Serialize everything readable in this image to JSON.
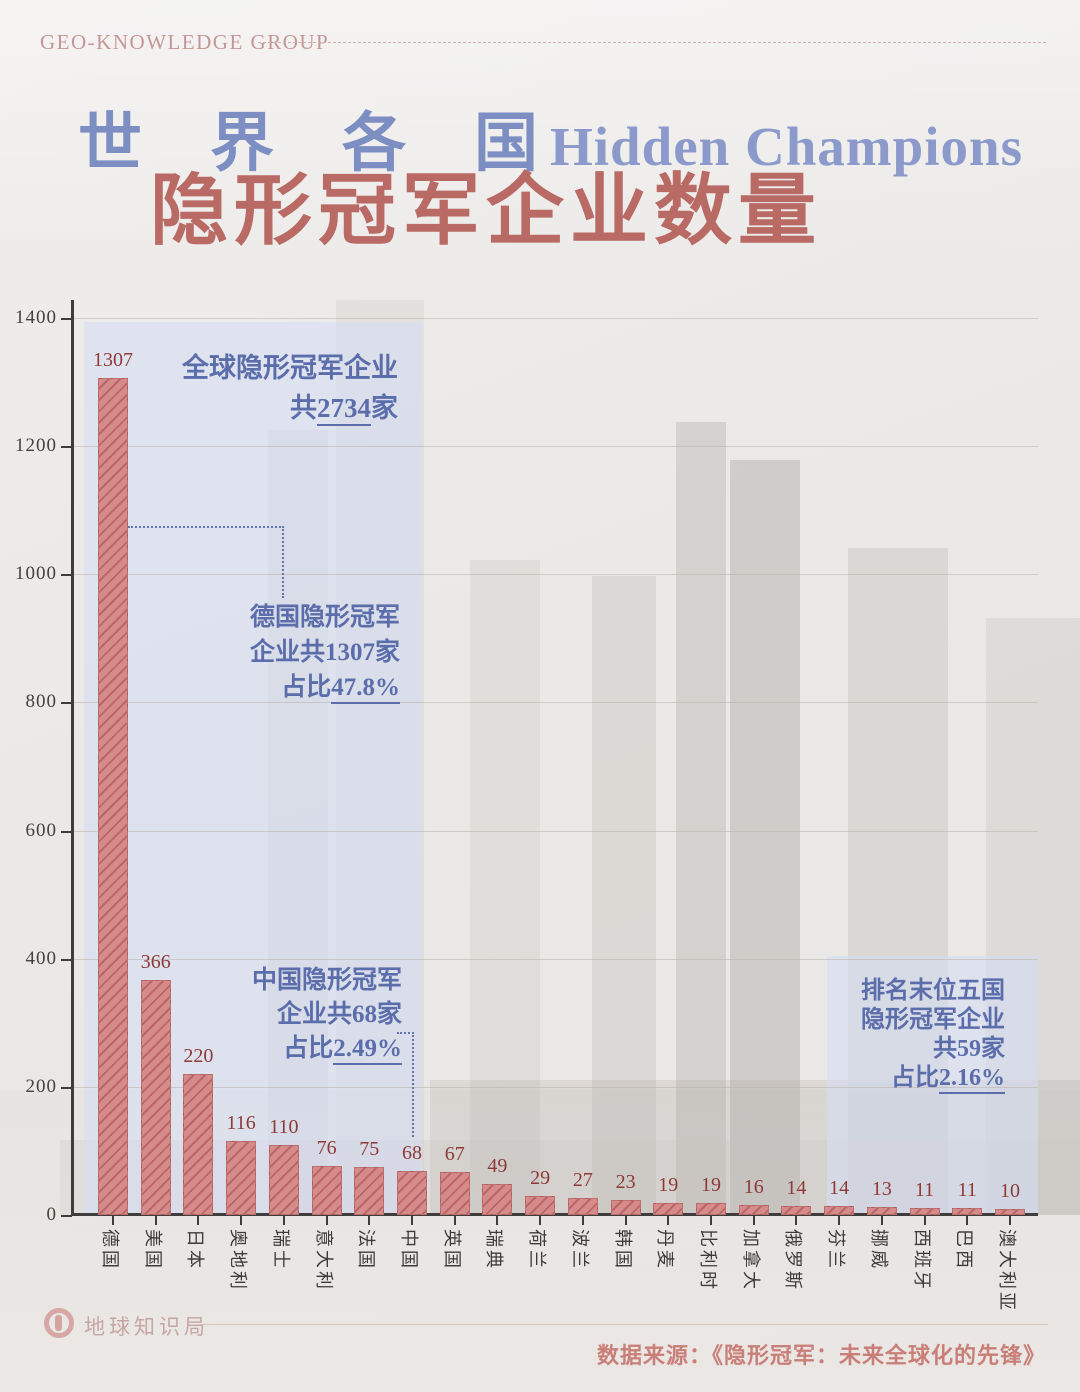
{
  "header": {
    "brand": "GEO-KNOWLEDGE GROUP"
  },
  "title": {
    "cn_prefix": "世 界 各 国",
    "en": "Hidden Champions",
    "cn_main": "隐形冠军企业数量"
  },
  "chart_data": {
    "type": "bar",
    "title": "世界各国隐形冠军企业数量",
    "categories": [
      "德国",
      "美国",
      "日本",
      "奥地利",
      "瑞士",
      "意大利",
      "法国",
      "中国",
      "英国",
      "瑞典",
      "荷兰",
      "波兰",
      "韩国",
      "丹麦",
      "比利时",
      "加拿大",
      "俄罗斯",
      "芬兰",
      "挪威",
      "西班牙",
      "巴西",
      "澳大利亚"
    ],
    "values": [
      1307,
      366,
      220,
      116,
      110,
      76,
      75,
      68,
      67,
      49,
      29,
      27,
      23,
      19,
      19,
      16,
      14,
      14,
      13,
      11,
      11,
      10
    ],
    "xlabel": "",
    "ylabel": "",
    "ylim": [
      0,
      1400
    ],
    "yticks": [
      0,
      200,
      400,
      600,
      800,
      1000,
      1200,
      1400
    ],
    "grid": true,
    "legend_position": "none",
    "bar_color": "#d68b8b",
    "bar_hatch_color": "#bd6467",
    "value_label_color": "#8e3a36"
  },
  "annotations": {
    "global": {
      "lines": [
        [
          {
            "t": "全球隐形冠军企业"
          }
        ],
        [
          {
            "t": "共"
          },
          {
            "t": "2734",
            "u": true
          },
          {
            "t": "家"
          }
        ]
      ]
    },
    "germany": {
      "lines": [
        [
          {
            "t": "德国隐形冠军"
          }
        ],
        [
          {
            "t": "企业共1307家"
          }
        ],
        [
          {
            "t": "占比"
          },
          {
            "t": "47.8%",
            "u": true
          }
        ]
      ]
    },
    "china": {
      "lines": [
        [
          {
            "t": "中国隐形冠军"
          }
        ],
        [
          {
            "t": "企业共68家"
          }
        ],
        [
          {
            "t": "占比"
          },
          {
            "t": "2.49%",
            "u": true
          }
        ]
      ]
    },
    "bottom_five": {
      "lines": [
        [
          {
            "t": "排名末位五国"
          }
        ],
        [
          {
            "t": "隐形冠军企业"
          }
        ],
        [
          {
            "t": "共59家"
          }
        ],
        [
          {
            "t": "占比"
          },
          {
            "t": "2.16%",
            "u": true
          }
        ]
      ]
    }
  },
  "footer": {
    "logo_text": "地球知识局",
    "source": "数据来源：《隐形冠军：未来全球化的先锋》"
  },
  "colors": {
    "accent_blue": "#5b6dab",
    "title_blue": "#8090c3",
    "title_red": "#b96a64",
    "bar_fill": "#d68b8b",
    "bar_hatch": "#bd6467",
    "value_label": "#8e3a36",
    "panel_blue": "#d5deF3",
    "brand_rose": "#c49795",
    "axis": "#3f3d3b"
  }
}
